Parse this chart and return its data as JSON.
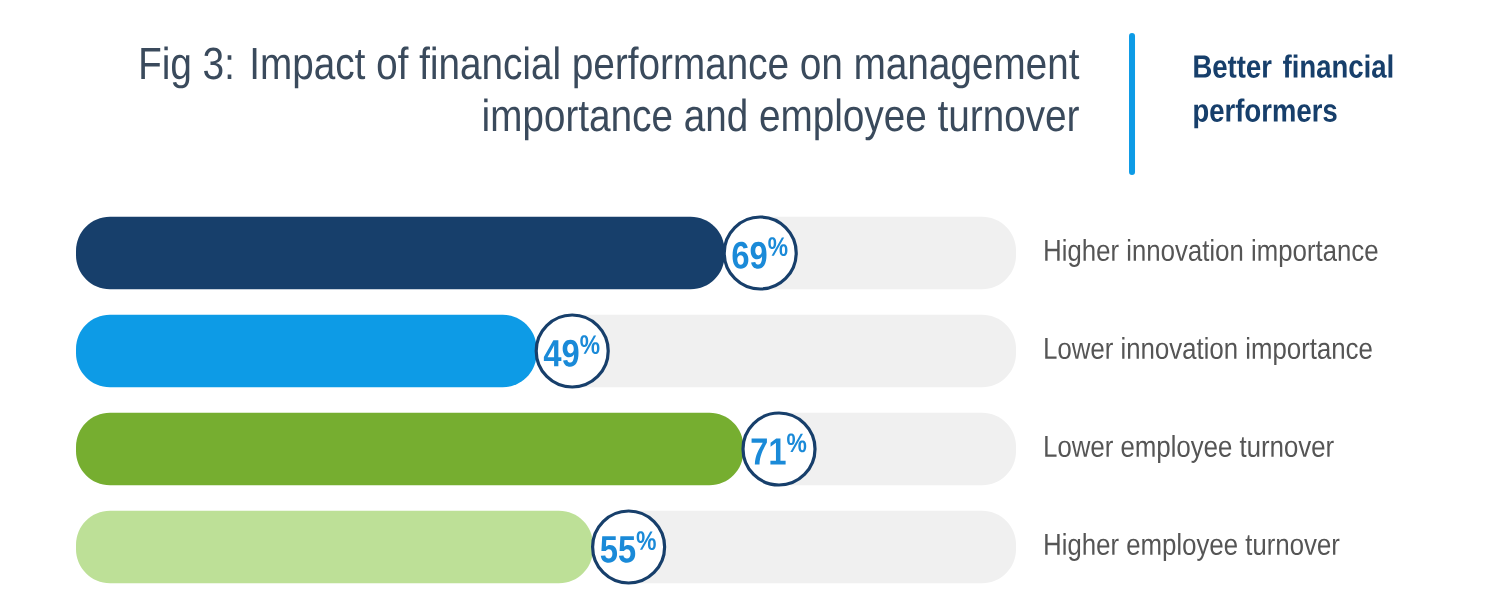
{
  "chart_data": {
    "type": "bar",
    "orientation": "horizontal",
    "stacked": true,
    "title": "Fig 3: Impact of financial performance on management importance and employee turnover",
    "subtitle": "Better financial performers",
    "categories": [
      "Higher innovation importance",
      "Lower innovation importance",
      "Lower employee turnover",
      "Higher employee turnover"
    ],
    "series": [
      {
        "colors": [
          "#173f6b",
          "#0d9be6",
          "#76ae30",
          "#bde097"
        ],
        "values": [
          69,
          49,
          71,
          55
        ],
        "value_labels": [
          "69$^{%}$",
          "49$^{%}$",
          "71$^{%}$",
          "55$^{%}$"
        ]
      },
      {
        "color": "#f0f0f0",
        "values": [
          31,
          51,
          29,
          45
        ]
      }
    ],
    "xlim": [
      0,
      100
    ],
    "tick_labels": "y"
  }
}
